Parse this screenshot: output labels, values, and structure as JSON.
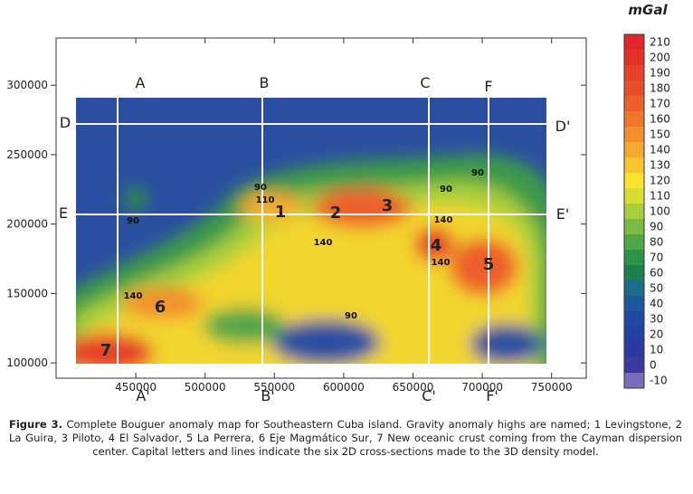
{
  "figure": {
    "unit": "mGal",
    "xlim": [
      392500,
      775000
    ],
    "ylim": [
      89000,
      334000
    ],
    "xticks": [
      450000,
      500000,
      550000,
      600000,
      650000,
      700000,
      750000
    ],
    "yticks": [
      100000,
      150000,
      200000,
      250000,
      300000
    ],
    "colorbar": {
      "ticks": [
        210,
        200,
        190,
        180,
        170,
        160,
        150,
        140,
        130,
        120,
        110,
        100,
        90,
        80,
        70,
        60,
        50,
        40,
        30,
        20,
        10,
        0,
        -10
      ],
      "colors": [
        "#e3262a",
        "#e5302a",
        "#e8402b",
        "#ea4d2b",
        "#ed5f2c",
        "#f0762d",
        "#f38f2f",
        "#f6a92f",
        "#f9c52f",
        "#fbe22d",
        "#d8de31",
        "#a8cf3b",
        "#79bb43",
        "#4fa648",
        "#2e9248",
        "#1f7f4f",
        "#1e6a8a",
        "#1f56a0",
        "#2049a5",
        "#2340a5",
        "#2b3aa3",
        "#3d3a9f",
        "#7a6cba"
      ]
    },
    "section_labels": [
      "A",
      "B",
      "C",
      "F",
      "D",
      "D'",
      "E",
      "E'",
      "A'",
      "B'",
      "C'",
      "F'"
    ],
    "anomaly_labels": [
      "1",
      "2",
      "3",
      "4",
      "5",
      "6",
      "7"
    ],
    "contour_labels": [
      "90",
      "110",
      "140",
      "90",
      "140",
      "90",
      "140",
      "90",
      "140",
      "90"
    ],
    "caption": {
      "label": "Figure 3.",
      "text": " Complete Bouguer anomaly map for Southeastern Cuba island. Gravity anomaly highs are named; 1 Levingstone, 2 La Guira, 3 Piloto, 4 El Salvador, 5 La Perrera, 6 Eje Magmático Sur, 7 New oceanic crust coming from the Cayman dispersion center. Capital letters and lines indicate the six 2D cross-sections made to the 3D density model."
    }
  }
}
